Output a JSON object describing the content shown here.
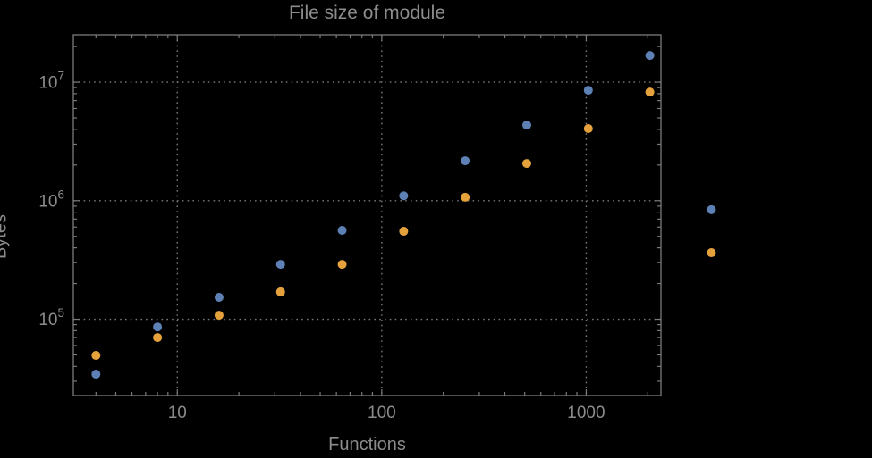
{
  "title": "File size of module",
  "colors": {
    "background": "#000000",
    "frame": "#7a7a7a",
    "grid": "#7a7a7a",
    "text": "#8c8c8c",
    "series_blue": "#5e81b5",
    "series_orange": "#e5a23c"
  },
  "chart_data": {
    "type": "scatter",
    "title": "File size of module",
    "xlabel": "Functions",
    "ylabel": "Bytes",
    "x_scale": "log",
    "y_scale": "log",
    "grid": "dotted lines at decade ticks",
    "legend": "none",
    "x": [
      4,
      8,
      16,
      32,
      64,
      128,
      256,
      512,
      1024,
      2048,
      4096
    ],
    "series": [
      {
        "name": "series-1-blue",
        "color": "#5e81b5",
        "values": [
          34400,
          86000,
          153000,
          290000,
          562000,
          1100000,
          2170000,
          4350000,
          8550000,
          16800000,
          840000
        ]
      },
      {
        "name": "series-2-orange",
        "color": "#e5a23c",
        "values": [
          49500,
          70000,
          108000,
          170000,
          290000,
          552000,
          1070000,
          2060000,
          4060000,
          8260000,
          364000
        ]
      }
    ],
    "x_ticks": [
      10,
      100,
      1000
    ],
    "y_tick_exponents": [
      5,
      6,
      7
    ],
    "y_tick_base": 10,
    "xlim": [
      3.1,
      2320
    ],
    "ylim": [
      22700,
      25100000
    ]
  }
}
